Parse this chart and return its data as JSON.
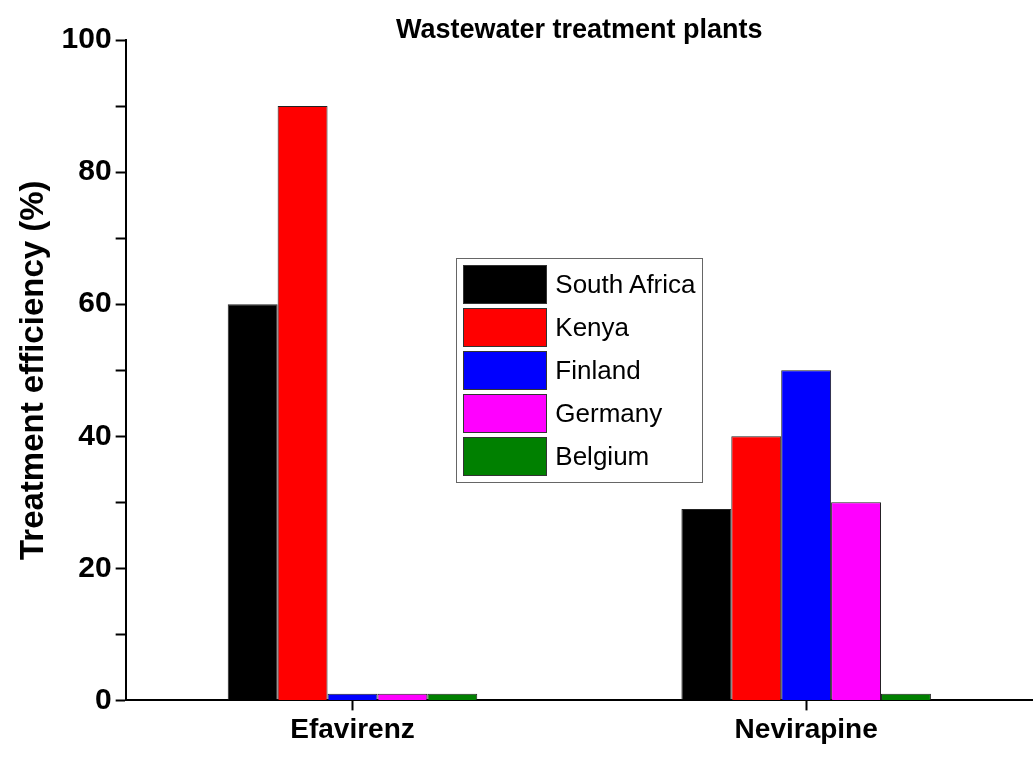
{
  "chart_data": {
    "type": "bar",
    "title": "Wastewater treatment plants",
    "ylabel": "Treatment efficiency (%)",
    "categories": [
      "Efavirenz",
      "Nevirapine"
    ],
    "series": [
      {
        "name": "South Africa",
        "color": "#000000",
        "values": [
          60,
          29
        ]
      },
      {
        "name": "Kenya",
        "color": "#ff0000",
        "values": [
          90,
          40
        ]
      },
      {
        "name": "Finland",
        "color": "#0000ff",
        "values": [
          1,
          50
        ]
      },
      {
        "name": "Germany",
        "color": "#ff00ff",
        "values": [
          1,
          30
        ]
      },
      {
        "name": "Belgium",
        "color": "#008000",
        "values": [
          1,
          1
        ]
      }
    ],
    "ylim": [
      0,
      100
    ],
    "yticks": [
      0,
      {
        "value": 10,
        "label": null
      },
      20,
      {
        "value": 30,
        "label": null
      },
      40,
      {
        "value": 50,
        "label": null
      },
      60,
      {
        "value": 70,
        "label": null
      },
      80,
      {
        "value": 90,
        "label": null
      },
      100
    ],
    "grid": false,
    "legend": "center"
  }
}
